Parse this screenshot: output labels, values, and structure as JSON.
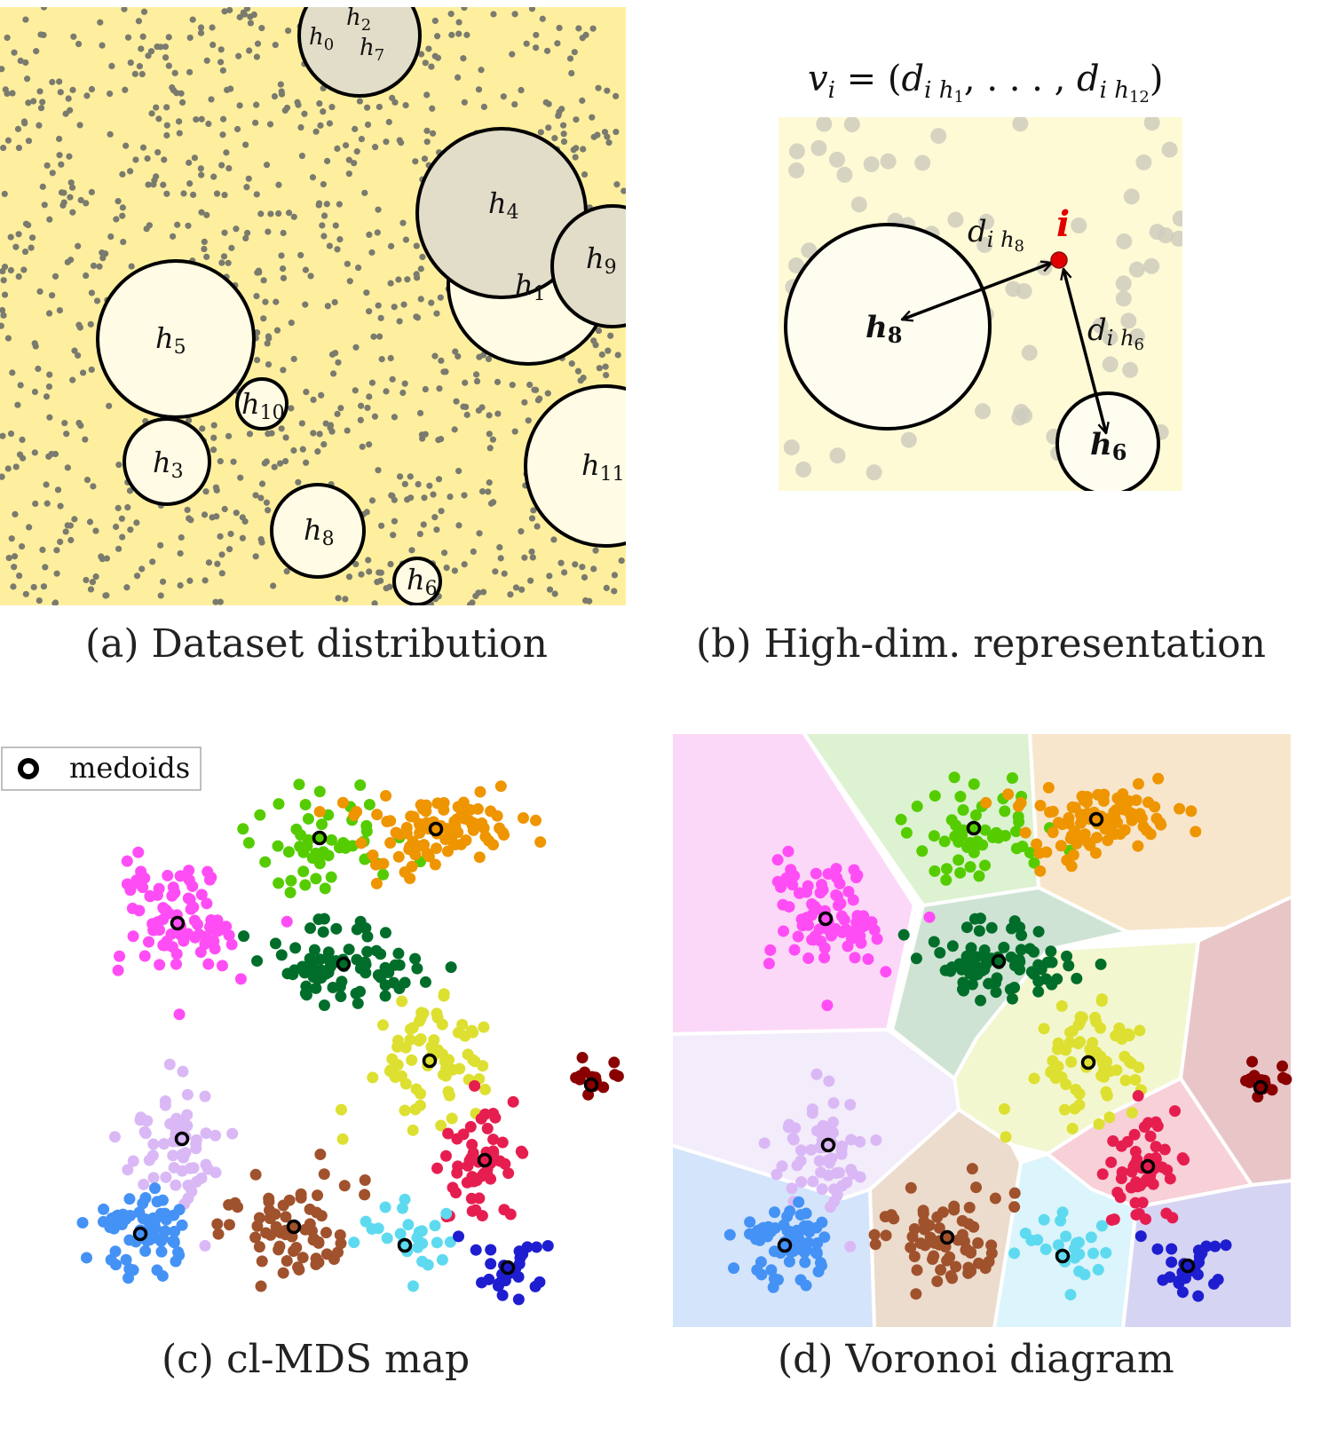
{
  "panel_a": {
    "caption": "(a) Dataset distribution",
    "background": "#fdef9e",
    "hubs": [
      {
        "label": "h",
        "sub": "2",
        "shade": "gray"
      },
      {
        "label": "h",
        "sub": "0",
        "shade": "gray"
      },
      {
        "label": "h",
        "sub": "7",
        "shade": "gray"
      },
      {
        "label": "h",
        "sub": "4",
        "shade": "gray"
      },
      {
        "label": "h",
        "sub": "1",
        "shade": "light"
      },
      {
        "label": "h",
        "sub": "9",
        "shade": "gray"
      },
      {
        "label": "h",
        "sub": "5",
        "shade": "light"
      },
      {
        "label": "h",
        "sub": "10",
        "shade": "light"
      },
      {
        "label": "h",
        "sub": "3",
        "shade": "light"
      },
      {
        "label": "h",
        "sub": "8",
        "shade": "light"
      },
      {
        "label": "h",
        "sub": "6",
        "shade": "light"
      },
      {
        "label": "h",
        "sub": "11",
        "shade": "light"
      }
    ]
  },
  "panel_b": {
    "caption": "(b) High-dim. representation",
    "formula": {
      "lhs": "v",
      "lhs_sub": "i",
      "eq": " = (",
      "d1": "d",
      "d1_sub": "i h",
      "d1_subsub": "1",
      "mid": ", . . . , ",
      "d2": "d",
      "d2_sub": "i h",
      "d2_subsub": "12",
      "close": ")"
    },
    "point_label": "i",
    "point_color": "#e00000",
    "hub_a": {
      "label": "h",
      "sub": "8"
    },
    "hub_b": {
      "label": "h",
      "sub": "6"
    },
    "dist_a": {
      "d": "d",
      "sub": "i h",
      "subsub": "8"
    },
    "dist_b": {
      "d": "d",
      "sub": "i h",
      "subsub": "6"
    }
  },
  "panel_c": {
    "caption": "(c) cl-MDS map",
    "legend_label": "medoids"
  },
  "panel_d": {
    "caption": "(d) Voronoi diagram"
  },
  "clusters": [
    {
      "color": "#ff4df5",
      "cell": "#fcd8f8"
    },
    {
      "color": "#55cc00",
      "cell": "#dcf2d0"
    },
    {
      "color": "#ee9500",
      "cell": "#f8e6cc"
    },
    {
      "color": "#006e2a",
      "cell": "#cfe3d4"
    },
    {
      "color": "#dde030",
      "cell": "#f3f7d0"
    },
    {
      "color": "#8a0000",
      "cell": "#e8c6c8"
    },
    {
      "color": "#e61e50",
      "cell": "#f8d0d8"
    },
    {
      "color": "#dab8f5",
      "cell": "#f3ecfb"
    },
    {
      "color": "#a0522d",
      "cell": "#ecdccd"
    },
    {
      "color": "#4492f5",
      "cell": "#d4e4fa"
    },
    {
      "color": "#5edaf0",
      "cell": "#dcf4fb"
    },
    {
      "color": "#1e1ed0",
      "cell": "#d6d4f3"
    }
  ]
}
